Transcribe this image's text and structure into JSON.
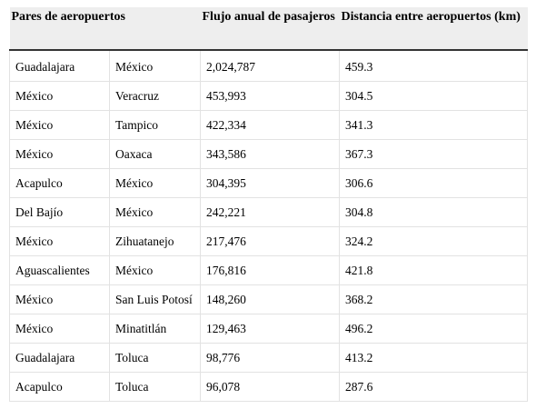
{
  "table": {
    "headers": {
      "pairs": "Pares de aeropuertos",
      "flow": "Flujo anual de pasajeros",
      "distance": "Distancia entre aeropuertos (km)"
    },
    "rows": [
      {
        "origin": "Guadalajara",
        "destination": "México",
        "flow": "2,024,787",
        "distance": "459.3"
      },
      {
        "origin": "México",
        "destination": "Veracruz",
        "flow": "453,993",
        "distance": "304.5"
      },
      {
        "origin": "México",
        "destination": "Tampico",
        "flow": "422,334",
        "distance": "341.3"
      },
      {
        "origin": "México",
        "destination": "Oaxaca",
        "flow": "343,586",
        "distance": "367.3"
      },
      {
        "origin": "Acapulco",
        "destination": "México",
        "flow": "304,395",
        "distance": "306.6"
      },
      {
        "origin": "Del Bajío",
        "destination": "México",
        "flow": "242,221",
        "distance": "304.8"
      },
      {
        "origin": "México",
        "destination": "Zihuatanejo",
        "flow": "217,476",
        "distance": "324.2"
      },
      {
        "origin": "Aguascalientes",
        "destination": "México",
        "flow": "176,816",
        "distance": "421.8"
      },
      {
        "origin": "México",
        "destination": "San Luis Potosí",
        "flow": "148,260",
        "distance": "368.2"
      },
      {
        "origin": "México",
        "destination": "Minatitlán",
        "flow": "129,463",
        "distance": "496.2"
      },
      {
        "origin": "Guadalajara",
        "destination": "Toluca",
        "flow": "98,776",
        "distance": "413.2"
      },
      {
        "origin": "Acapulco",
        "destination": "Toluca",
        "flow": "96,078",
        "distance": "287.6"
      }
    ]
  }
}
